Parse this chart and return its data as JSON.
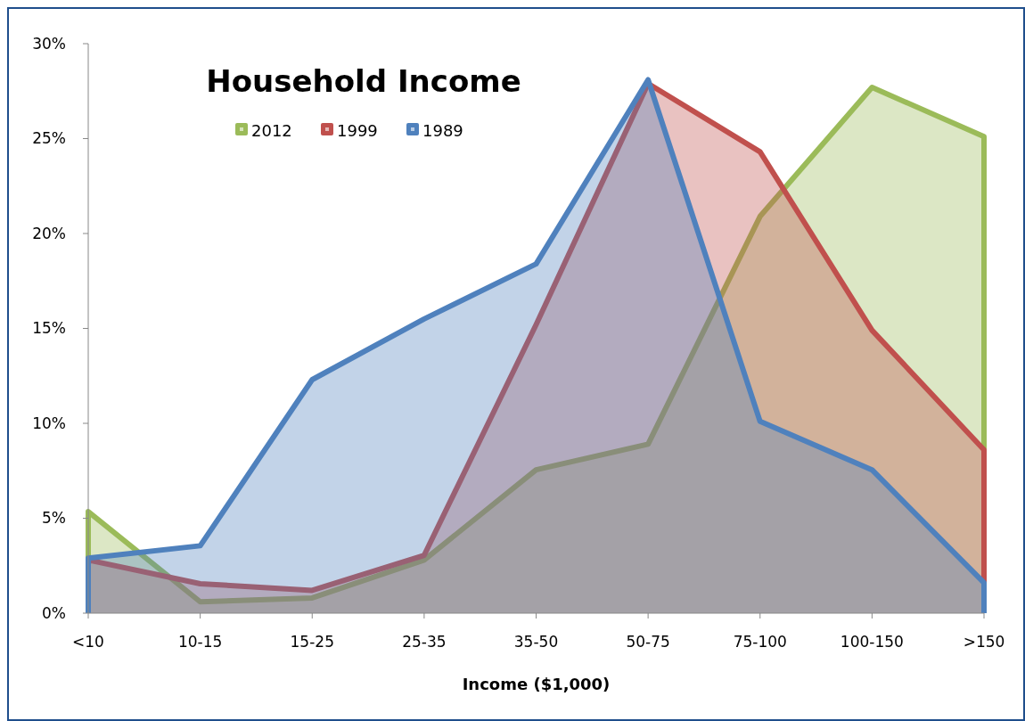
{
  "chart_data": {
    "type": "area",
    "title": "Household Income",
    "xlabel": "Income ($1,000)",
    "categories": [
      "<10",
      "10-15",
      "15-25",
      "25-35",
      "35-50",
      "50-75",
      "75-100",
      "100-150",
      ">150"
    ],
    "series": [
      {
        "name": "2012",
        "color": "#9bbb59",
        "values": [
          5.35,
          0.6,
          0.8,
          2.8,
          7.55,
          8.9,
          20.9,
          27.7,
          25.1
        ]
      },
      {
        "name": "1999",
        "color": "#c0504d",
        "values": [
          2.8,
          1.55,
          1.2,
          3.05,
          15.2,
          27.9,
          24.3,
          14.9,
          8.6
        ]
      },
      {
        "name": "1989",
        "color": "#4f81bd",
        "values": [
          2.9,
          3.55,
          12.3,
          15.5,
          18.4,
          28.1,
          10.1,
          7.55,
          1.6
        ]
      }
    ],
    "ylim": [
      0,
      30
    ],
    "yticks": [
      {
        "value": 0,
        "label": "0%"
      },
      {
        "value": 5,
        "label": "5%"
      },
      {
        "value": 10,
        "label": "10%"
      },
      {
        "value": 15,
        "label": "15%"
      },
      {
        "value": 20,
        "label": "20%"
      },
      {
        "value": 25,
        "label": "25%"
      },
      {
        "value": 30,
        "label": "30%"
      }
    ],
    "legend": "top",
    "grid": false
  }
}
